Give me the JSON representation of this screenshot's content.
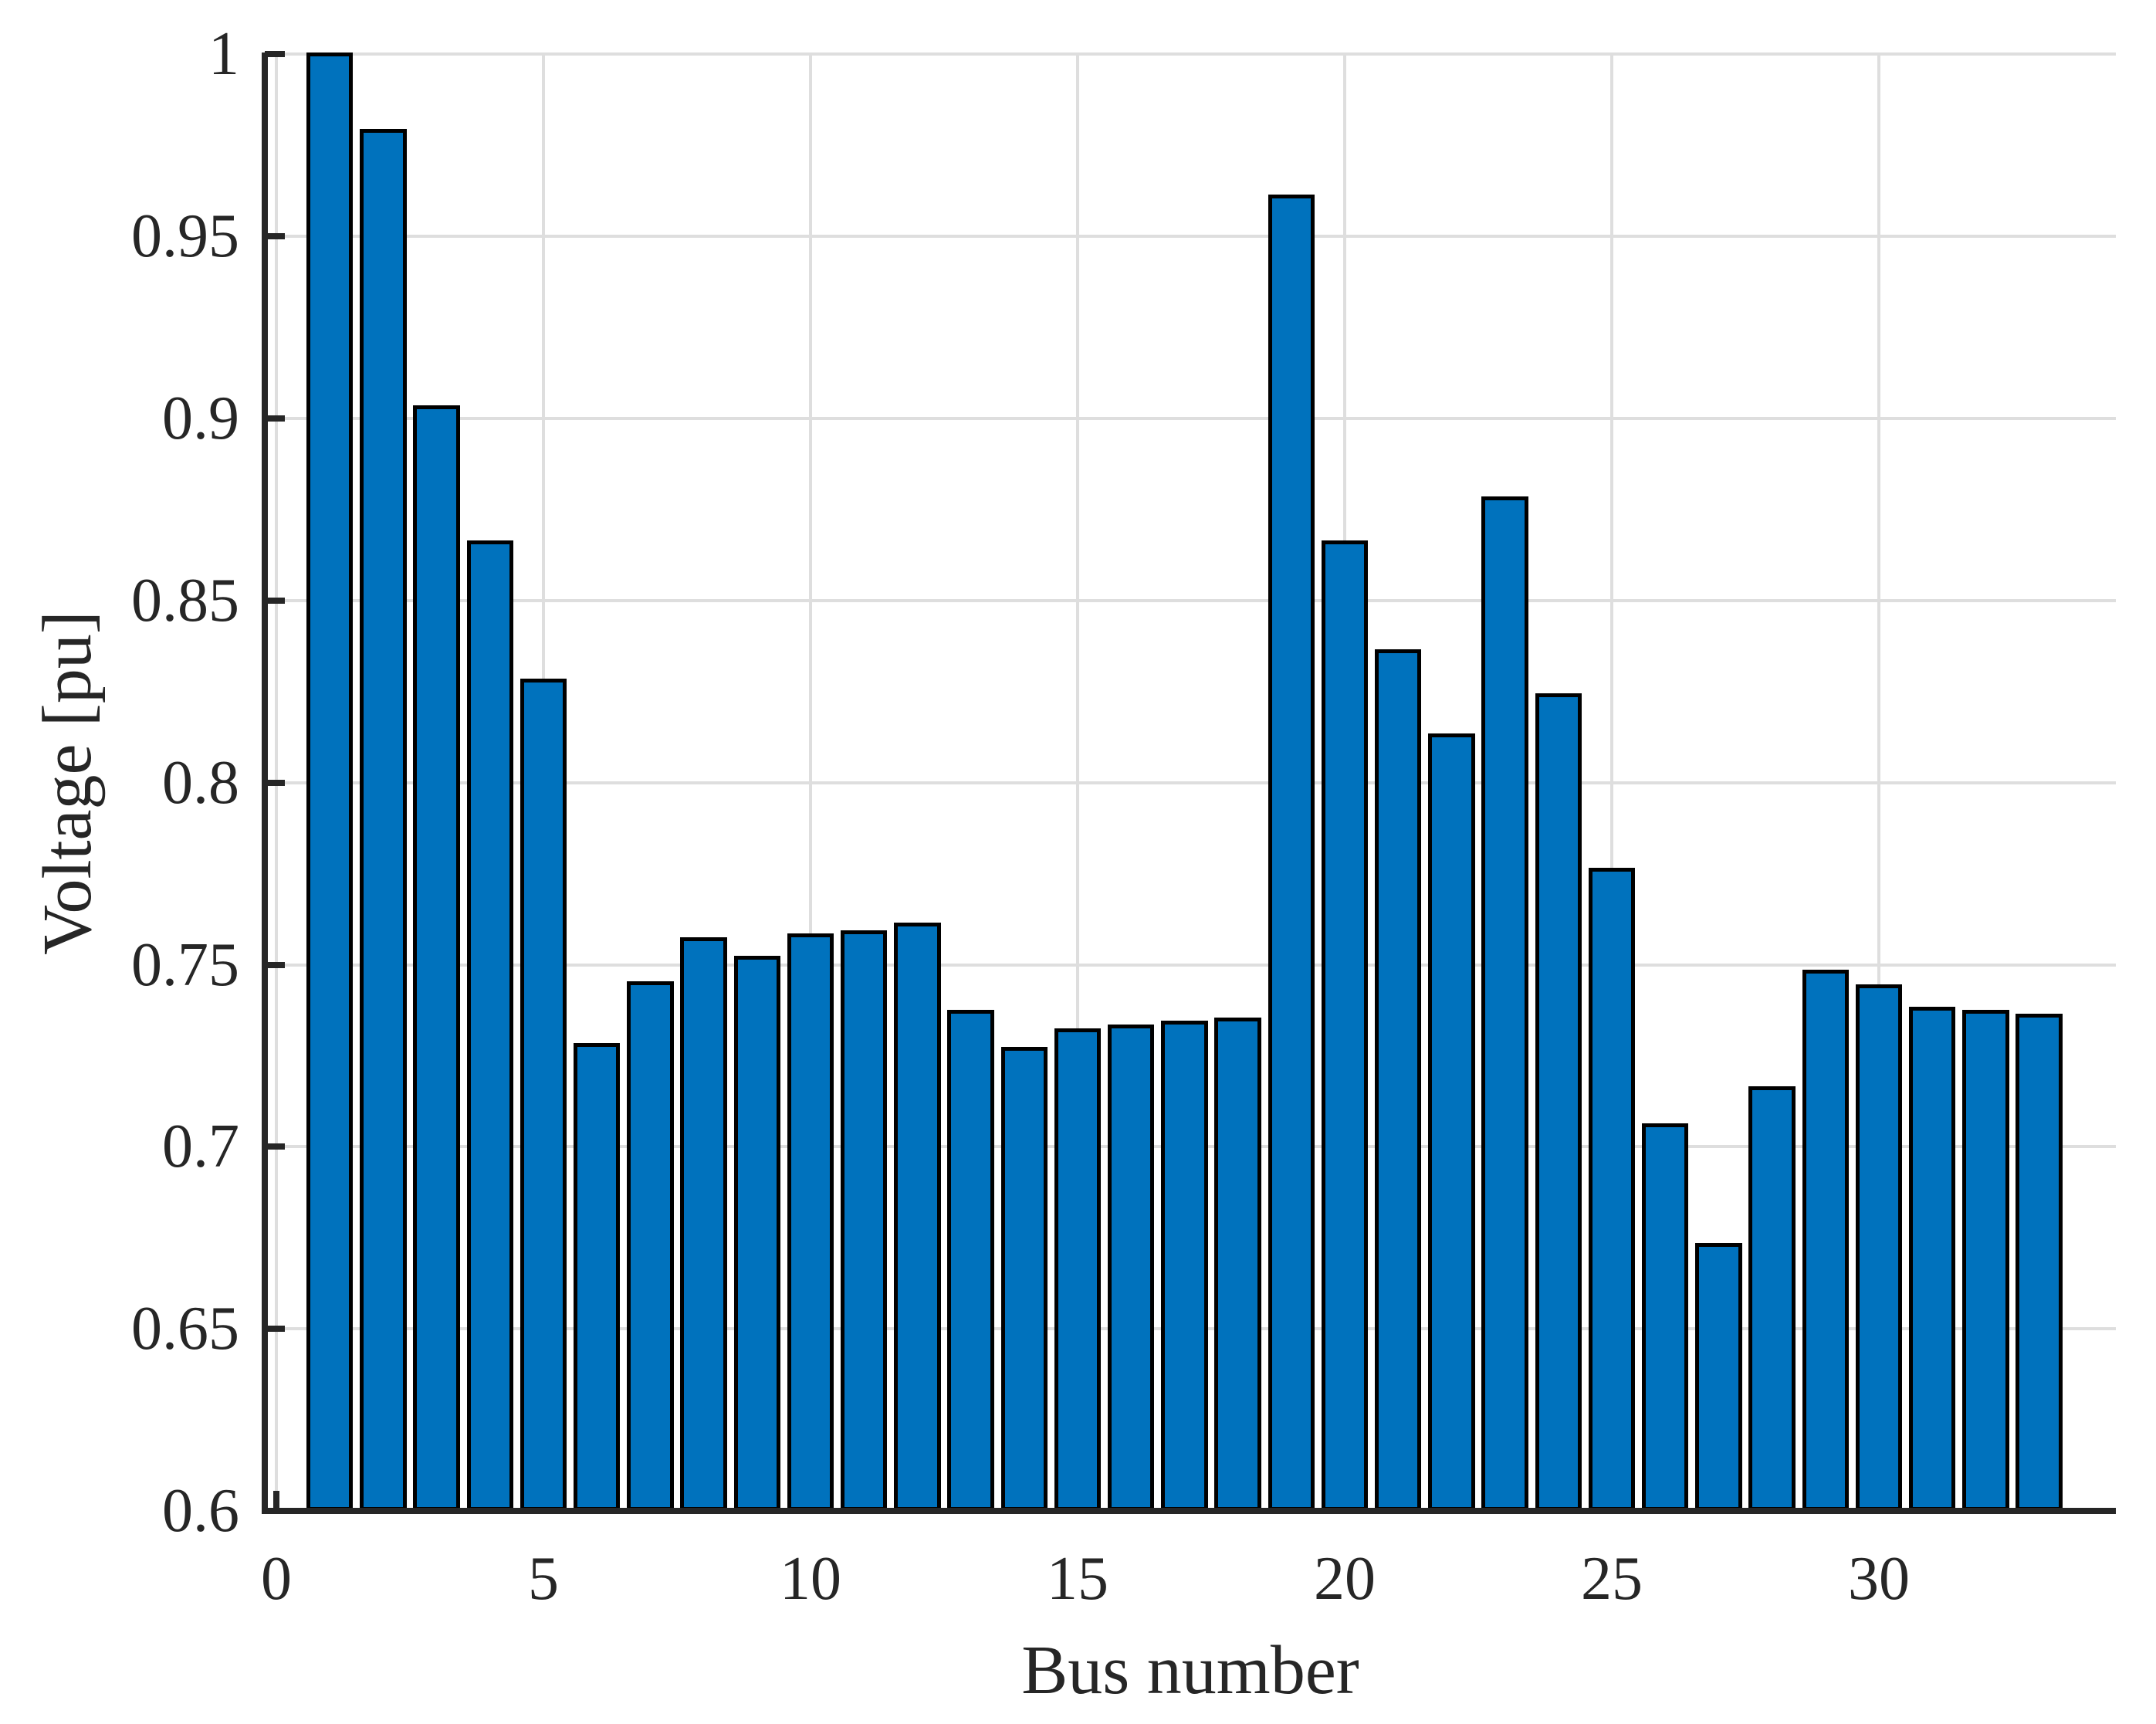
{
  "figure": {
    "xlabel": "Bus number",
    "ylabel": "Voltage [pu]"
  },
  "chart_data": {
    "type": "bar",
    "title": "",
    "xlabel": "Bus number",
    "ylabel": "Voltage [pu]",
    "categories": [
      1,
      2,
      3,
      4,
      5,
      6,
      7,
      8,
      9,
      10,
      11,
      12,
      13,
      14,
      15,
      16,
      17,
      18,
      19,
      20,
      21,
      22,
      23,
      24,
      25,
      26,
      27,
      28,
      29,
      30,
      31,
      32,
      33
    ],
    "values": [
      1.0,
      0.979,
      0.903,
      0.866,
      0.828,
      0.728,
      0.745,
      0.757,
      0.752,
      0.758,
      0.759,
      0.761,
      0.737,
      0.727,
      0.732,
      0.733,
      0.734,
      0.735,
      0.961,
      0.866,
      0.836,
      0.813,
      0.878,
      0.824,
      0.776,
      0.706,
      0.673,
      0.716,
      0.748,
      0.744,
      0.738,
      0.737,
      0.736
    ],
    "bar_width": 0.8,
    "xlim": [
      -0.22,
      34.44
    ],
    "ylim": [
      0.6,
      1.0
    ],
    "xticks": [
      0,
      5,
      10,
      15,
      20,
      25,
      30
    ],
    "xtick_labels": [
      "0",
      "5",
      "10",
      "15",
      "20",
      "25",
      "30"
    ],
    "yticks": [
      0.6,
      0.65,
      0.7,
      0.75,
      0.8,
      0.85,
      0.9,
      0.95,
      1.0
    ],
    "ytick_labels": [
      "0.6",
      "0.65",
      "0.7",
      "0.75",
      "0.8",
      "0.85",
      "0.9",
      "0.95",
      "1"
    ],
    "grid": true,
    "legend": null,
    "colors": {
      "bar_fill": "#0072BD",
      "bar_edge": "#000000",
      "grid": "#DEDEDE",
      "axis": "#262626",
      "background": "#FFFFFF"
    }
  }
}
